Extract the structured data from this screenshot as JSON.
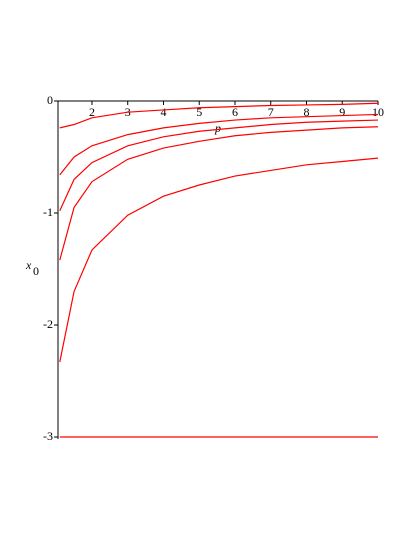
{
  "chart_data": {
    "type": "line",
    "x_label": "p",
    "y_label": {
      "base": "x",
      "sub": "0"
    },
    "x": [
      1.1,
      1.5,
      2,
      3,
      4,
      5,
      6,
      7,
      8,
      9,
      10
    ],
    "series": [
      {
        "color": "#ff0000",
        "values": [
          -0.24,
          -0.21,
          -0.15,
          -0.1,
          -0.08,
          -0.06,
          -0.05,
          -0.04,
          -0.035,
          -0.03,
          -0.02
        ]
      },
      {
        "color": "#ff0000",
        "values": [
          -0.66,
          -0.5,
          -0.4,
          -0.3,
          -0.24,
          -0.2,
          -0.17,
          -0.15,
          -0.14,
          -0.13,
          -0.12
        ]
      },
      {
        "color": "#ff0000",
        "values": [
          -0.98,
          -0.7,
          -0.55,
          -0.4,
          -0.32,
          -0.27,
          -0.24,
          -0.21,
          -0.19,
          -0.18,
          -0.17
        ]
      },
      {
        "color": "#ff0000",
        "values": [
          -1.42,
          -0.95,
          -0.72,
          -0.52,
          -0.42,
          -0.36,
          -0.31,
          -0.28,
          -0.26,
          -0.24,
          -0.23
        ]
      },
      {
        "color": "#ff0000",
        "values": [
          -2.33,
          -1.7,
          -1.33,
          -1.02,
          -0.85,
          -0.75,
          -0.67,
          -0.62,
          -0.57,
          -0.54,
          -0.51
        ]
      },
      {
        "color": "#ff0000",
        "values": [
          -3,
          -3,
          -3,
          -3,
          -3,
          -3,
          -3,
          -3,
          -3,
          -3,
          -3
        ]
      }
    ],
    "xlim": [
      1.05,
      10
    ],
    "ylim": [
      -3,
      0
    ],
    "xticks": [
      2,
      3,
      4,
      5,
      6,
      7,
      8,
      9,
      10
    ],
    "yticks": [
      0,
      -1,
      -2,
      -3
    ]
  }
}
